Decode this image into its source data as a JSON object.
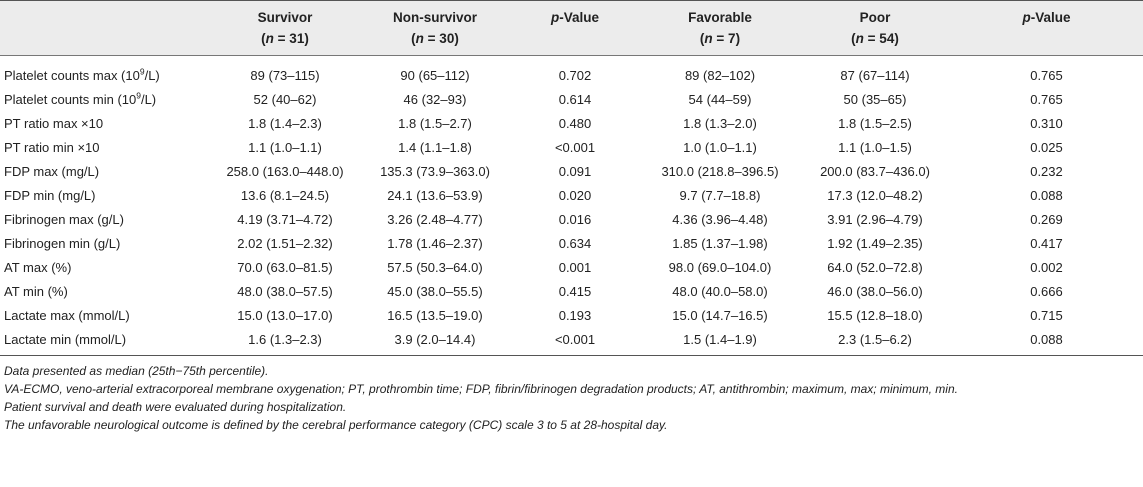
{
  "header": {
    "row_label": "",
    "columns": [
      {
        "name": "Survivor",
        "n_label": "(n = 31)",
        "n_prefix": "(",
        "n_var": "n",
        "n_rest": " = 31)"
      },
      {
        "name": "Non-survivor",
        "n_label": "(n = 30)",
        "n_prefix": "(",
        "n_var": "n",
        "n_rest": " = 30)"
      },
      {
        "name_italic": "p",
        "name_rest": "-Value"
      },
      {
        "name": "Favorable",
        "n_label": "(n = 7)",
        "n_prefix": "(",
        "n_var": "n",
        "n_rest": " = 7)"
      },
      {
        "name": "Poor",
        "n_label": "(n = 54)",
        "n_prefix": "(",
        "n_var": "n",
        "n_rest": " = 54)"
      },
      {
        "name_italic": "p",
        "name_rest": "-Value"
      }
    ]
  },
  "rows": [
    {
      "label": "Platelet counts max (10",
      "sup": "9",
      "label_rest": "/L)",
      "cells": [
        "89 (73–115)",
        "90 (65–112)",
        "0.702",
        "89 (82–102)",
        "87 (67–114)",
        "0.765"
      ]
    },
    {
      "label": "Platelet counts min (10",
      "sup": "9",
      "label_rest": "/L)",
      "cells": [
        "52 (40–62)",
        "46 (32–93)",
        "0.614",
        "54 (44–59)",
        "50 (35–65)",
        "0.765"
      ]
    },
    {
      "label": "PT ratio max ×10",
      "cells": [
        "1.8 (1.4–2.3)",
        "1.8 (1.5–2.7)",
        "0.480",
        "1.8 (1.3–2.0)",
        "1.8 (1.5–2.5)",
        "0.310"
      ]
    },
    {
      "label": "PT ratio min ×10",
      "cells": [
        "1.1 (1.0–1.1)",
        "1.4 (1.1–1.8)",
        "<0.001",
        "1.0 (1.0–1.1)",
        "1.1 (1.0–1.5)",
        "0.025"
      ]
    },
    {
      "label": "FDP max (mg/L)",
      "cells": [
        "258.0 (163.0–448.0)",
        "135.3 (73.9–363.0)",
        "0.091",
        "310.0 (218.8–396.5)",
        "200.0 (83.7–436.0)",
        "0.232"
      ]
    },
    {
      "label": "FDP min (mg/L)",
      "cells": [
        "13.6 (8.1–24.5)",
        "24.1 (13.6–53.9)",
        "0.020",
        "9.7 (7.7–18.8)",
        "17.3 (12.0–48.2)",
        "0.088"
      ]
    },
    {
      "label": "Fibrinogen max (g/L)",
      "cells": [
        "4.19 (3.71–4.72)",
        "3.26 (2.48–4.77)",
        "0.016",
        "4.36 (3.96–4.48)",
        "3.91 (2.96–4.79)",
        "0.269"
      ]
    },
    {
      "label": "Fibrinogen min (g/L)",
      "cells": [
        "2.02 (1.51–2.32)",
        "1.78 (1.46–2.37)",
        "0.634",
        "1.85 (1.37–1.98)",
        "1.92 (1.49–2.35)",
        "0.417"
      ]
    },
    {
      "label": "AT max (%)",
      "cells": [
        "70.0 (63.0–81.5)",
        "57.5 (50.3–64.0)",
        "0.001",
        "98.0 (69.0–104.0)",
        "64.0 (52.0–72.8)",
        "0.002"
      ]
    },
    {
      "label": "AT min (%)",
      "cells": [
        "48.0 (38.0–57.5)",
        "45.0 (38.0–55.5)",
        "0.415",
        "48.0 (40.0–58.0)",
        "46.0 (38.0–56.0)",
        "0.666"
      ]
    },
    {
      "label": "Lactate max (mmol/L)",
      "cells": [
        "15.0 (13.0–17.0)",
        "16.5 (13.5–19.0)",
        "0.193",
        "15.0 (14.7–16.5)",
        "15.5 (12.8–18.0)",
        "0.715"
      ]
    },
    {
      "label": "Lactate min (mmol/L)",
      "cells": [
        "1.6 (1.3–2.3)",
        "3.9 (2.0–14.4)",
        "<0.001",
        "1.5 (1.4–1.9)",
        "2.3 (1.5–6.2)",
        "0.088"
      ]
    }
  ],
  "notes": [
    "Data presented as median (25th−75th percentile).",
    "VA-ECMO, veno-arterial extracorporeal membrane oxygenation; PT, prothrombin time; FDP, fibrin/fibrinogen degradation products; AT, antithrombin; maximum, max; minimum, min.",
    "Patient survival and death were evaluated during hospitalization.",
    "The unfavorable neurological outcome is defined by the cerebral performance category (CPC) scale 3 to 5 at 28-hospital day."
  ]
}
